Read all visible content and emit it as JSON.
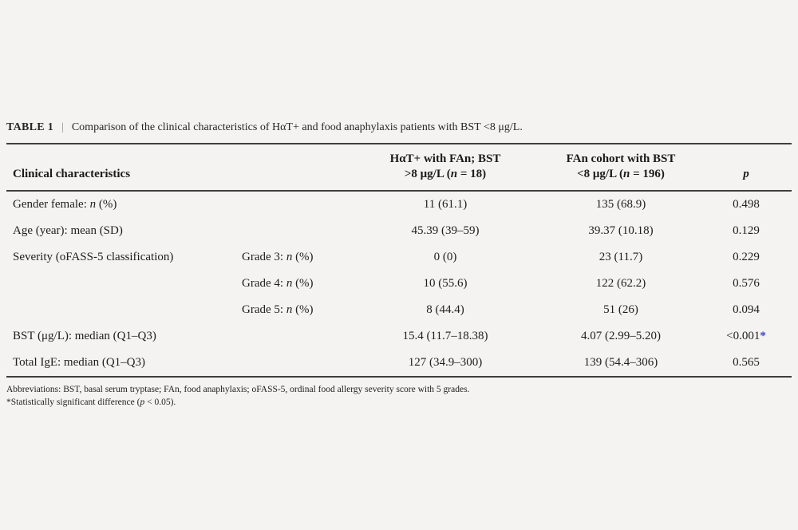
{
  "caption": {
    "label": "TABLE 1",
    "separator": "|",
    "text": "Comparison of the clinical characteristics of HαT+ and food anaphylaxis patients with BST <8 μg/L."
  },
  "table": {
    "header": {
      "col1": "Clinical characteristics",
      "col3_line1": "HαT+ with FAn; BST",
      "col3_line2_pre": ">8 μg/L (",
      "col3_line2_it": "n",
      "col3_line2_post": " = 18)",
      "col4_line1": "FAn cohort with BST",
      "col4_line2_pre": "<8 μg/L (",
      "col4_line2_it": "n",
      "col4_line2_post": " = 196)",
      "col5": "p"
    },
    "rows": [
      {
        "label_pre": "Gender female: ",
        "label_it": "n",
        "label_post": " (%)",
        "sub_pre": "",
        "sub_it": "",
        "sub_post": "",
        "v1": "11 (61.1)",
        "v2": "135 (68.9)",
        "p": "0.498",
        "star": ""
      },
      {
        "label_pre": "Age (year): mean (SD)",
        "label_it": "",
        "label_post": "",
        "sub_pre": "",
        "sub_it": "",
        "sub_post": "",
        "v1": "45.39 (39–59)",
        "v2": "39.37 (10.18)",
        "p": "0.129",
        "star": ""
      },
      {
        "label_pre": "Severity (oFASS-5 classification)",
        "label_it": "",
        "label_post": "",
        "sub_pre": "Grade 3: ",
        "sub_it": "n",
        "sub_post": " (%)",
        "v1": "0 (0)",
        "v2": "23 (11.7)",
        "p": "0.229",
        "star": ""
      },
      {
        "label_pre": "",
        "label_it": "",
        "label_post": "",
        "sub_pre": "Grade 4: ",
        "sub_it": "n",
        "sub_post": " (%)",
        "v1": "10 (55.6)",
        "v2": "122 (62.2)",
        "p": "0.576",
        "star": ""
      },
      {
        "label_pre": "",
        "label_it": "",
        "label_post": "",
        "sub_pre": "Grade 5: ",
        "sub_it": "n",
        "sub_post": " (%)",
        "v1": "8 (44.4)",
        "v2": "51 (26)",
        "p": "0.094",
        "star": ""
      },
      {
        "label_pre": "BST (μg/L): median (Q1–Q3)",
        "label_it": "",
        "label_post": "",
        "sub_pre": "",
        "sub_it": "",
        "sub_post": "",
        "v1": "15.4 (11.7–18.38)",
        "v2": "4.07 (2.99–5.20)",
        "p": "<0.001",
        "star": "*"
      },
      {
        "label_pre": "Total IgE: median (Q1–Q3)",
        "label_it": "",
        "label_post": "",
        "sub_pre": "",
        "sub_it": "",
        "sub_post": "",
        "v1": "127 (34.9–300)",
        "v2": "139 (54.4–306)",
        "p": "0.565",
        "star": ""
      }
    ]
  },
  "footnotes": {
    "abbreviations": "Abbreviations: BST, basal serum tryptase; FAn, food anaphylaxis; oFASS-5, ordinal food allergy severity score with 5 grades.",
    "sig_pre": "*Statistically significant difference (",
    "sig_it": "p",
    "sig_post": " < 0.05)."
  },
  "colors": {
    "background": "#f4f3f1",
    "rule": "#3e3e3e",
    "significant_asterisk": "#3c45c8"
  }
}
